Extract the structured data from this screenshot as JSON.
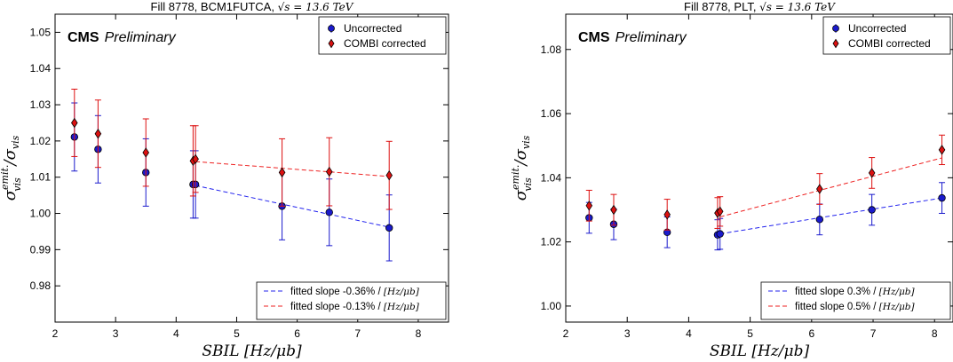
{
  "chart_data": [
    {
      "type": "scatter",
      "title_prefix": "Fill 8778, BCM1FUTCA, ",
      "title_math": "√s = 13.6 TeV",
      "watermark_bold": "CMS",
      "watermark_italic": "Preliminary",
      "xlabel": "SBIL [Hz/μb]",
      "ylabel_main": "σ",
      "ylabel_sup": "emit.",
      "ylabel_sub": "vis",
      "ylabel_tail": " /σ",
      "ylabel_tail_sub": "vis",
      "xlim": [
        2,
        8.5
      ],
      "ylim": [
        0.97,
        1.055
      ],
      "xticks": [
        "2",
        "3",
        "4",
        "5",
        "6",
        "7",
        "8"
      ],
      "yticks": [
        "0.98",
        "0.99",
        "1.00",
        "1.01",
        "1.02",
        "1.03",
        "1.04",
        "1.05"
      ],
      "legend": [
        "Uncorrected",
        "COMBI corrected"
      ],
      "series": [
        {
          "name": "Uncorrected",
          "color": "#1a1acc",
          "marker": "circle",
          "points": [
            {
              "x": 2.32,
              "y": 1.0211,
              "err": 0.0094
            },
            {
              "x": 2.71,
              "y": 1.0177,
              "err": 0.0093
            },
            {
              "x": 3.5,
              "y": 1.0113,
              "err": 0.0093
            },
            {
              "x": 4.28,
              "y": 1.008,
              "err": 0.0093
            },
            {
              "x": 4.32,
              "y": 1.008,
              "err": 0.0093
            },
            {
              "x": 5.75,
              "y": 1.002,
              "err": 0.0093
            },
            {
              "x": 6.53,
              "y": 1.0003,
              "err": 0.0092
            },
            {
              "x": 7.52,
              "y": 0.996,
              "err": 0.0091
            }
          ]
        },
        {
          "name": "COMBI corrected",
          "color": "#dd1111",
          "marker": "diamond",
          "points": [
            {
              "x": 2.32,
              "y": 1.025,
              "err": 0.0093
            },
            {
              "x": 2.71,
              "y": 1.022,
              "err": 0.0093
            },
            {
              "x": 3.5,
              "y": 1.0168,
              "err": 0.0093
            },
            {
              "x": 4.28,
              "y": 1.0145,
              "err": 0.0097
            },
            {
              "x": 4.32,
              "y": 1.015,
              "err": 0.0092
            },
            {
              "x": 5.75,
              "y": 1.0113,
              "err": 0.0093
            },
            {
              "x": 6.53,
              "y": 1.0115,
              "err": 0.0094
            },
            {
              "x": 7.52,
              "y": 1.0105,
              "err": 0.0094
            }
          ]
        }
      ],
      "fits": [
        {
          "name": "fitted slope -0.36% / ",
          "unit": "[Hz/μb]",
          "color": "#2222ee",
          "x": [
            4.32,
            7.52
          ],
          "y": [
            1.0077,
            0.9962
          ]
        },
        {
          "name": "fitted slope -0.13% / ",
          "unit": "[Hz/μb]",
          "color": "#ee2222",
          "x": [
            4.32,
            7.52
          ],
          "y": [
            1.0143,
            1.0102
          ]
        }
      ]
    },
    {
      "type": "scatter",
      "title_prefix": "Fill 8778, PLT, ",
      "title_math": "√s = 13.6 TeV",
      "watermark_bold": "CMS",
      "watermark_italic": "Preliminary",
      "xlabel": "SBIL [Hz/μb]",
      "ylabel_main": "σ",
      "ylabel_sup": "emit.",
      "ylabel_sub": "vis",
      "ylabel_tail": " /σ",
      "ylabel_tail_sub": "vis",
      "xlim": [
        2,
        8.3
      ],
      "ylim": [
        0.995,
        1.091
      ],
      "xticks": [
        "2",
        "3",
        "4",
        "5",
        "6",
        "7",
        "8"
      ],
      "yticks": [
        "1.00",
        "1.02",
        "1.04",
        "1.06",
        "1.08"
      ],
      "legend": [
        "Uncorrected",
        "COMBI corrected"
      ],
      "series": [
        {
          "name": "Uncorrected",
          "color": "#1a1acc",
          "marker": "circle",
          "points": [
            {
              "x": 2.38,
              "y": 1.0275,
              "err": 0.0048
            },
            {
              "x": 2.78,
              "y": 1.0255,
              "err": 0.0048
            },
            {
              "x": 3.65,
              "y": 1.023,
              "err": 0.0048
            },
            {
              "x": 4.47,
              "y": 1.0222,
              "err": 0.0047
            },
            {
              "x": 4.51,
              "y": 1.0225,
              "err": 0.0048
            },
            {
              "x": 6.13,
              "y": 1.027,
              "err": 0.0048
            },
            {
              "x": 6.98,
              "y": 1.03,
              "err": 0.0048
            },
            {
              "x": 8.12,
              "y": 1.0337,
              "err": 0.0048
            }
          ]
        },
        {
          "name": "COMBI corrected",
          "color": "#dd1111",
          "marker": "diamond",
          "points": [
            {
              "x": 2.38,
              "y": 1.0313,
              "err": 0.0048
            },
            {
              "x": 2.78,
              "y": 1.03,
              "err": 0.0048
            },
            {
              "x": 3.65,
              "y": 1.0285,
              "err": 0.0048
            },
            {
              "x": 4.47,
              "y": 1.029,
              "err": 0.0048
            },
            {
              "x": 4.51,
              "y": 1.0295,
              "err": 0.0046
            },
            {
              "x": 6.13,
              "y": 1.0365,
              "err": 0.0048
            },
            {
              "x": 6.98,
              "y": 1.0415,
              "err": 0.0048
            },
            {
              "x": 8.12,
              "y": 1.0487,
              "err": 0.0046
            }
          ]
        }
      ],
      "fits": [
        {
          "name": "fitted slope 0.3% / ",
          "unit": "[Hz/μb]",
          "color": "#2222ee",
          "x": [
            4.51,
            8.12
          ],
          "y": [
            1.0225,
            1.0337
          ]
        },
        {
          "name": "fitted slope 0.5% / ",
          "unit": "[Hz/μb]",
          "color": "#ee2222",
          "x": [
            4.51,
            8.12
          ],
          "y": [
            1.0278,
            1.0462
          ]
        }
      ]
    }
  ]
}
